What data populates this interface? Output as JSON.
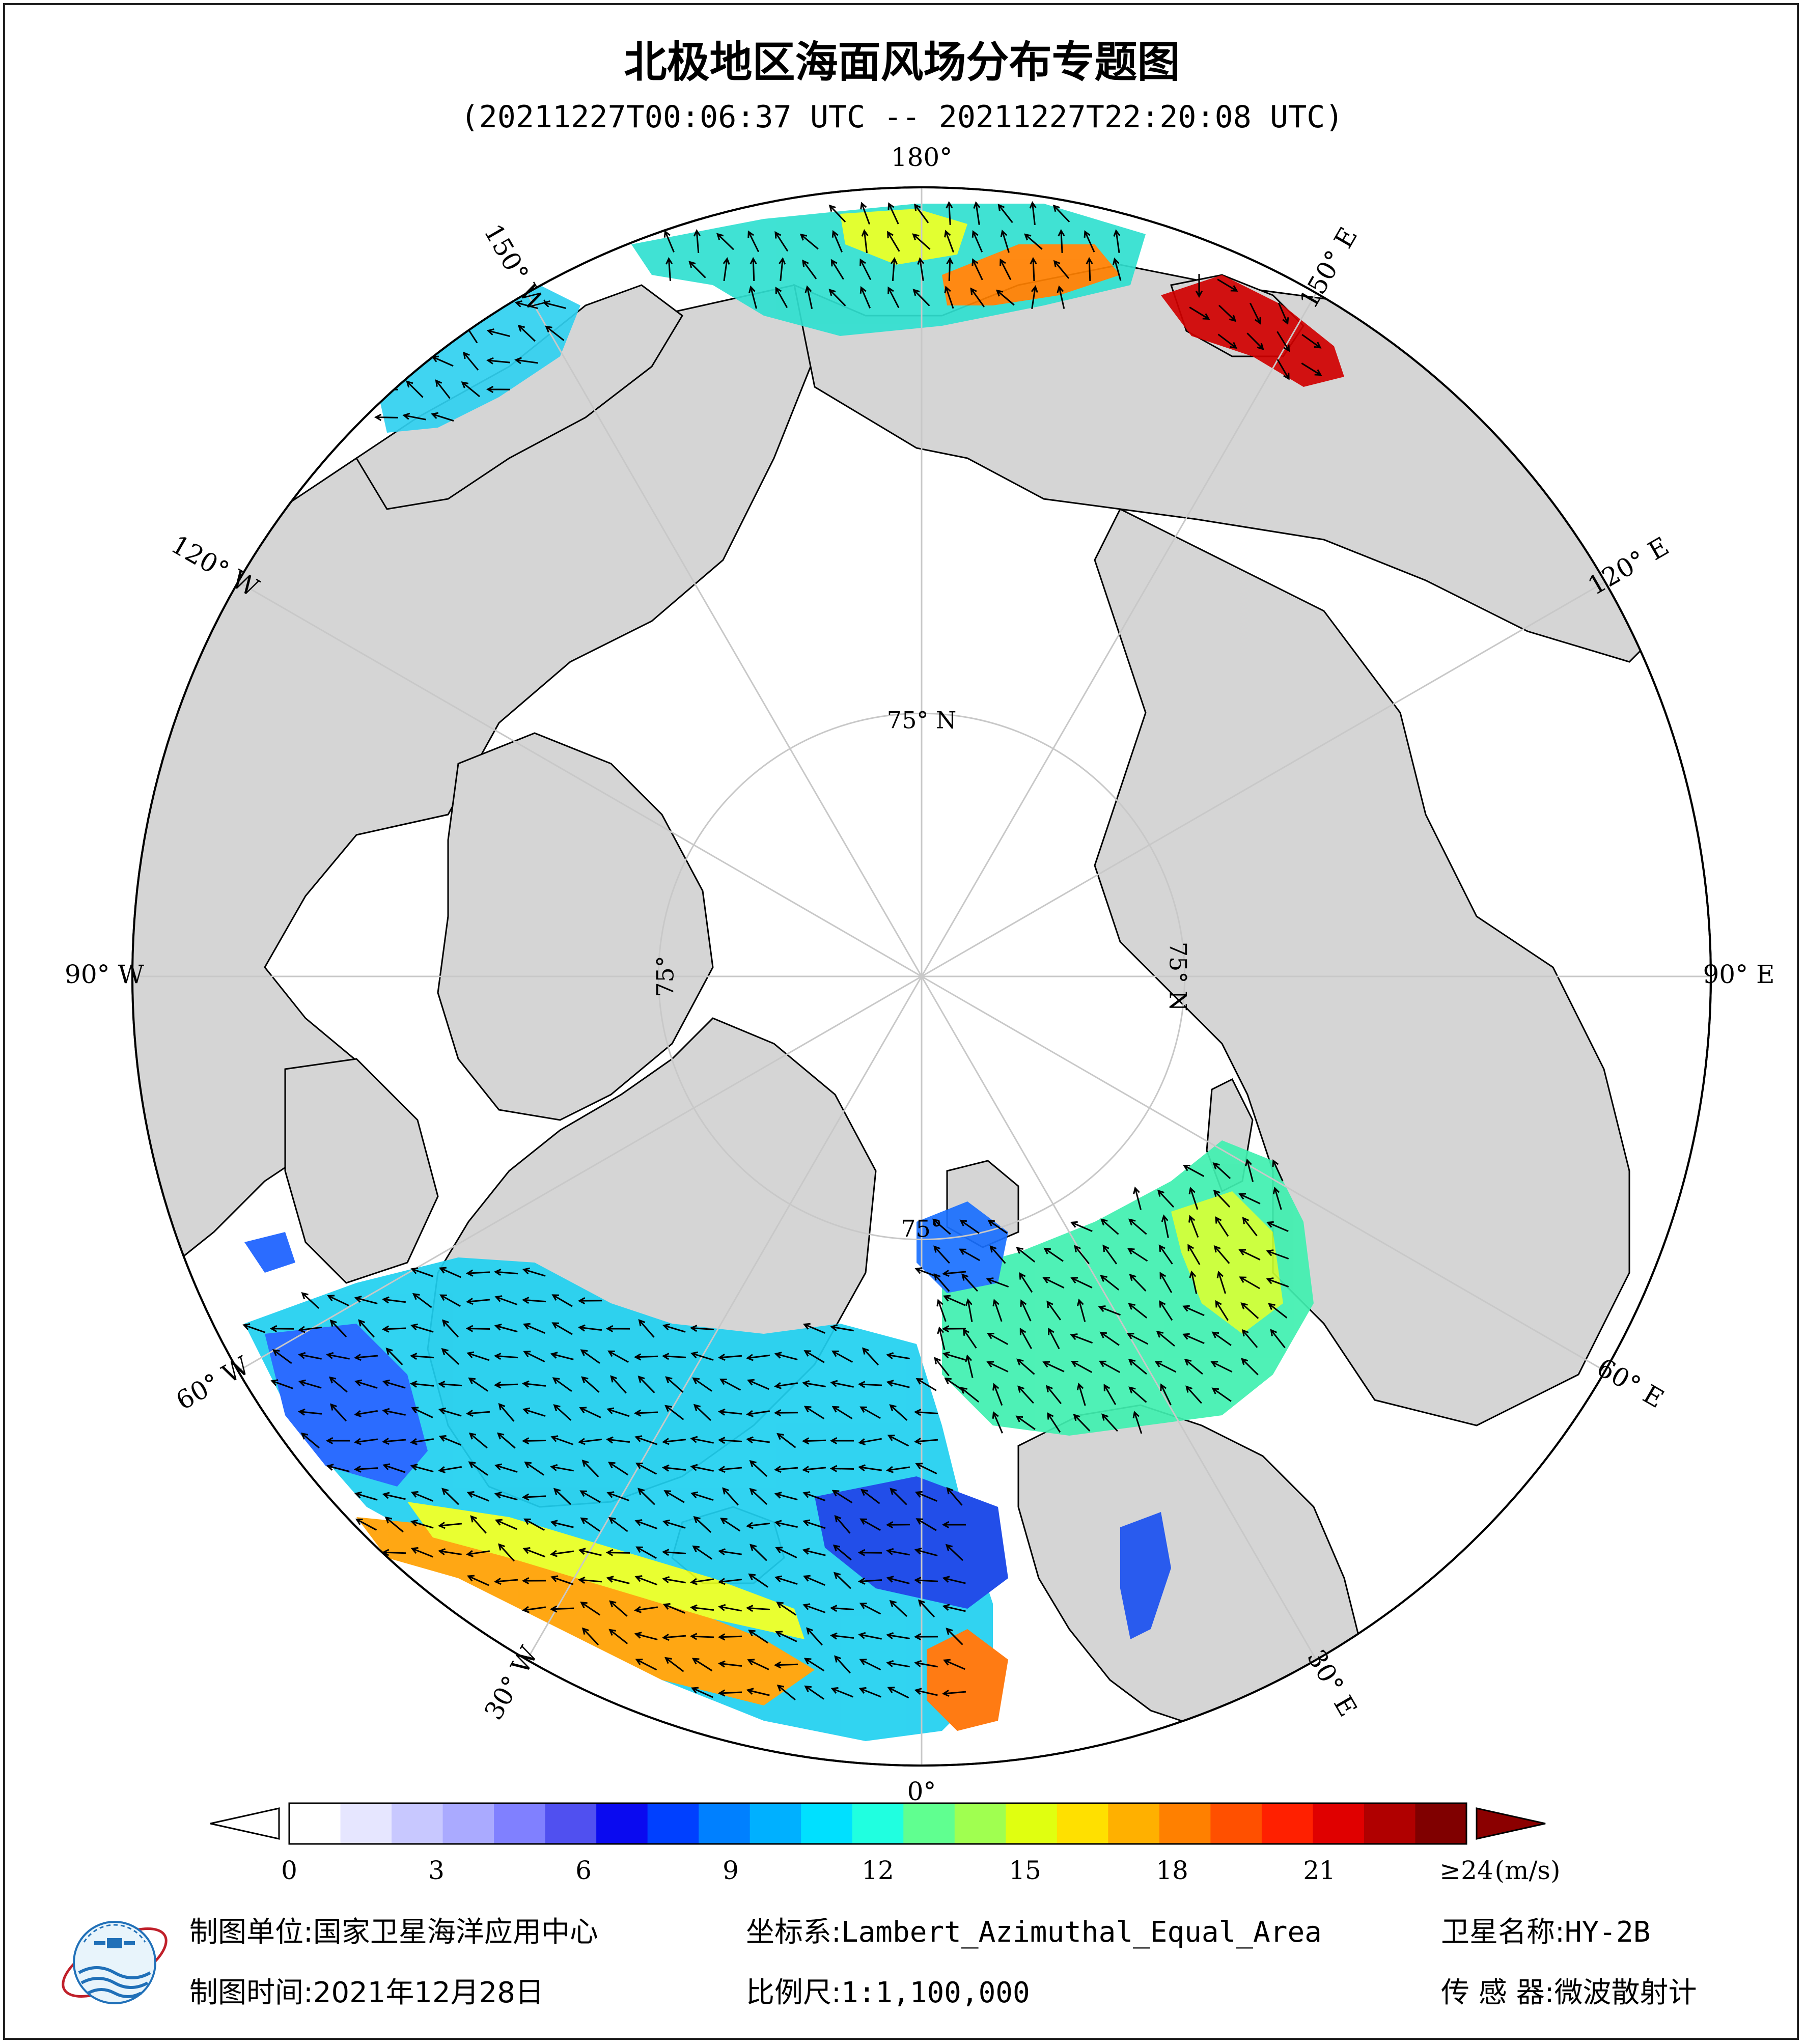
{
  "title": "北极地区海面风场分布专题图",
  "subtitle": "(20211227T00:06:37 UTC -- 20211227T22:20:08 UTC)",
  "map": {
    "longitude_labels": [
      {
        "text": "180°",
        "lon": 180
      },
      {
        "text": "150° E",
        "lon": 150
      },
      {
        "text": "120° E",
        "lon": 120
      },
      {
        "text": "90° E",
        "lon": 90
      },
      {
        "text": "60° E",
        "lon": 60
      },
      {
        "text": "30° E",
        "lon": 30
      },
      {
        "text": "0°",
        "lon": 0
      },
      {
        "text": "30° W",
        "lon": -30
      },
      {
        "text": "60° W",
        "lon": -60
      },
      {
        "text": "90° W",
        "lon": -90
      },
      {
        "text": "120° W",
        "lon": -120
      },
      {
        "text": "150° W",
        "lon": -150
      }
    ],
    "latitude_labels": [
      {
        "text": "75° N",
        "lon": 180,
        "lat": 75
      },
      {
        "text": "75° N",
        "lon": 90,
        "lat": 75
      },
      {
        "text": "75°",
        "lon": -90,
        "lat": 75
      },
      {
        "text": "75°",
        "lon": 0,
        "lat": 75
      }
    ],
    "colors": {
      "land": "#d5d5d5",
      "ice": "#ffffff",
      "grid": "#c8c8c8",
      "coast": "#000000"
    }
  },
  "colorbar": {
    "unit": "(m/s)",
    "ticks": [
      {
        "text": "0",
        "value": 0
      },
      {
        "text": "3",
        "value": 3
      },
      {
        "text": "6",
        "value": 6
      },
      {
        "text": "9",
        "value": 9
      },
      {
        "text": "12",
        "value": 12
      },
      {
        "text": "15",
        "value": 15
      },
      {
        "text": "18",
        "value": 18
      },
      {
        "text": "21",
        "value": 21
      },
      {
        "text": "≥24",
        "value": 24
      }
    ],
    "colors": [
      "#ffffff",
      "#e6e6ff",
      "#c8c8ff",
      "#aaaaff",
      "#8080ff",
      "#5050f0",
      "#0a0af0",
      "#0040ff",
      "#0080ff",
      "#00b0ff",
      "#00e0ff",
      "#20ffe0",
      "#60ff90",
      "#a0ff50",
      "#e0ff10",
      "#ffe000",
      "#ffb000",
      "#ff8000",
      "#ff5000",
      "#ff2000",
      "#e00000",
      "#b00000",
      "#800000"
    ],
    "range": [
      0,
      24
    ]
  },
  "footer": {
    "unit_label": "制图单位:",
    "unit_value": "国家卫星海洋应用中心",
    "crs_label": "坐标系:",
    "crs_value": "Lambert_Azimuthal_Equal_Area",
    "satellite_label": "卫星名称:",
    "satellite_value": "HY-2B",
    "time_label": "制图时间:",
    "time_value": "2021年12月28日",
    "scale_label": "比例尺:",
    "scale_value": "1:1,100,000",
    "sensor_label": "传 感 器:",
    "sensor_value": "微波散射计"
  }
}
